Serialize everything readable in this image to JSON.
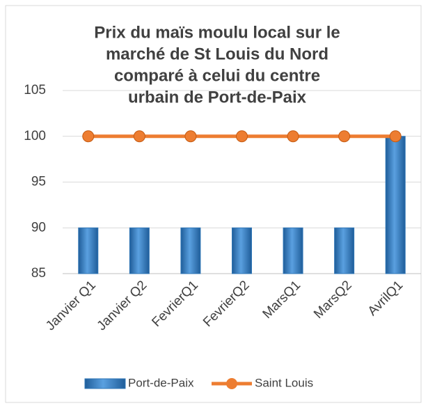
{
  "chart_data": {
    "type": "combo",
    "title": [
      "Prix du maïs moulu  local sur le",
      "marché de St Louis du Nord",
      "comparé à celui du centre",
      "urbain de Port-de-Paix"
    ],
    "categories": [
      "Janvier Q1",
      "Janvier Q2",
      "FevrierQ1",
      "FevrierQ2",
      "MarsQ1",
      "MarsQ2",
      "AvrilQ1"
    ],
    "series": [
      {
        "name": "Port-de-Paix",
        "type": "bar",
        "color": "#2e75b6",
        "values": [
          90,
          90,
          90,
          90,
          90,
          90,
          100
        ]
      },
      {
        "name": "Saint Louis",
        "type": "line",
        "color": "#ed7d31",
        "values": [
          100,
          100,
          100,
          100,
          100,
          100,
          100
        ]
      }
    ],
    "ylim": [
      85,
      105
    ],
    "yticks": [
      85,
      90,
      95,
      100,
      105
    ],
    "grid": true,
    "legend": "bottom"
  }
}
